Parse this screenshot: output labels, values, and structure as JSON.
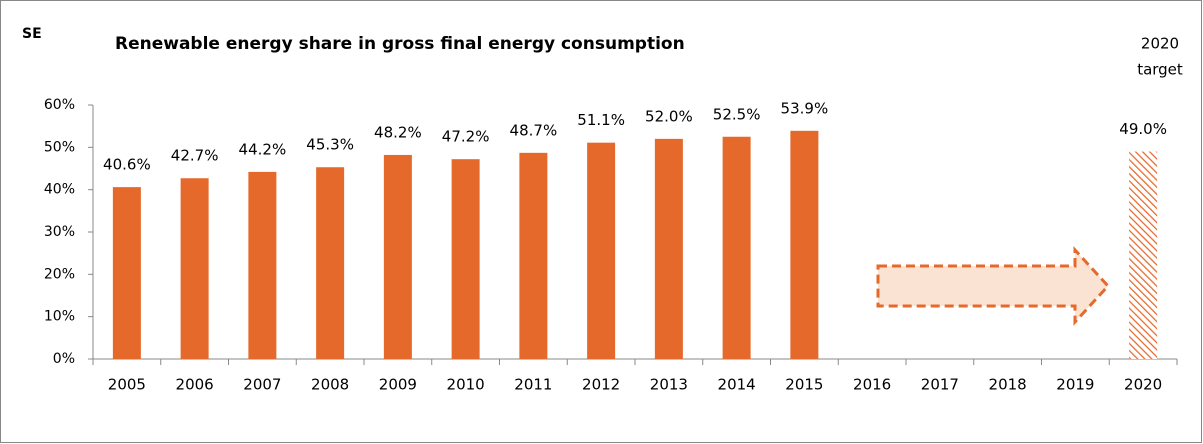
{
  "chart_data": {
    "type": "bar",
    "corner_label": "SE",
    "title": "Renewable energy share in gross final energy consumption",
    "annotation": [
      "2020",
      "target"
    ],
    "categories": [
      "2005",
      "2006",
      "2007",
      "2008",
      "2009",
      "2010",
      "2011",
      "2012",
      "2013",
      "2014",
      "2015",
      "2016",
      "2017",
      "2018",
      "2019",
      "2020"
    ],
    "values": [
      40.6,
      42.7,
      44.2,
      45.3,
      48.2,
      47.2,
      48.7,
      51.1,
      52.0,
      52.5,
      53.9,
      null,
      null,
      null,
      null,
      49.0
    ],
    "value_labels": [
      "40.6%",
      "42.7%",
      "44.2%",
      "45.3%",
      "48.2%",
      "47.2%",
      "48.7%",
      "51.1%",
      "52.0%",
      "52.5%",
      "53.9%",
      null,
      null,
      null,
      null,
      "49.0%"
    ],
    "hatched": [
      "2020"
    ],
    "color": "#e5692b",
    "ylim": [
      0,
      60
    ],
    "yticks": [
      {
        "value": 0,
        "label": "0%"
      },
      {
        "value": 10,
        "label": "10%"
      },
      {
        "value": 20,
        "label": "20%"
      },
      {
        "value": 30,
        "label": "30%"
      },
      {
        "value": 40,
        "label": "40%"
      },
      {
        "value": 50,
        "label": "50%"
      },
      {
        "value": 60,
        "label": "60%"
      }
    ],
    "grid": false
  }
}
